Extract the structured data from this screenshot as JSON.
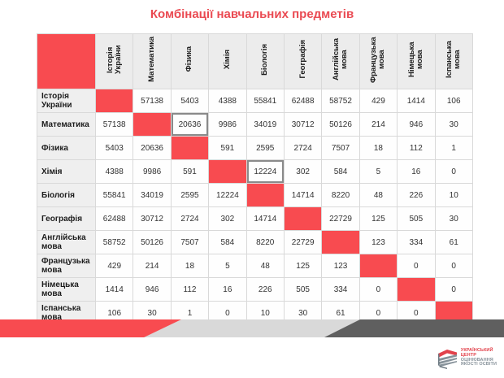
{
  "title": "Комбінації навчальних предметів",
  "chart_data": {
    "type": "table",
    "title": "Комбінації навчальних предметів",
    "subjects": [
      "Історія України",
      "Математика",
      "Фізика",
      "Хімія",
      "Біологія",
      "Географія",
      "Англійська мова",
      "Французька мова",
      "Німецька мова",
      "Іспанська мова"
    ],
    "matrix": [
      [
        null,
        57138,
        5403,
        4388,
        55841,
        62488,
        58752,
        429,
        1414,
        106
      ],
      [
        57138,
        null,
        20636,
        9986,
        34019,
        30712,
        50126,
        214,
        946,
        30
      ],
      [
        5403,
        20636,
        null,
        591,
        2595,
        2724,
        7507,
        18,
        112,
        1
      ],
      [
        4388,
        9986,
        591,
        null,
        12224,
        302,
        584,
        5,
        16,
        0
      ],
      [
        55841,
        34019,
        2595,
        12224,
        null,
        14714,
        8220,
        48,
        226,
        10
      ],
      [
        62488,
        30712,
        2724,
        302,
        14714,
        null,
        22729,
        125,
        505,
        30
      ],
      [
        58752,
        50126,
        7507,
        584,
        8220,
        22729,
        null,
        123,
        334,
        61
      ],
      [
        429,
        214,
        18,
        5,
        48,
        125,
        123,
        null,
        0,
        0
      ],
      [
        1414,
        946,
        112,
        16,
        226,
        505,
        334,
        0,
        null,
        0
      ],
      [
        106,
        30,
        1,
        0,
        10,
        30,
        61,
        0,
        0,
        null
      ]
    ],
    "diagonal_style": "solid-red-empty",
    "highlighted_cells": [
      {
        "row_index": 1,
        "col_index": 2,
        "row": "Математика",
        "col": "Фізика",
        "value": 20636
      },
      {
        "row_index": 3,
        "col_index": 4,
        "row": "Хімія",
        "col": "Біологія",
        "value": 12224
      }
    ]
  },
  "logo": {
    "line1": "УКРАЇНСЬКИЙ",
    "line2": "ЦЕНТР",
    "line3": "ОЦІНЮВАННЯ",
    "line4": "ЯКОСТІ ОСВІТИ"
  },
  "colors": {
    "accent_red": "#f84b50",
    "title_red": "#ea4a52",
    "header_bg": "#ececec",
    "highlight_border": "#8a8a8a",
    "stripe_light": "#d9d9d9",
    "stripe_dark": "#5f5f5f",
    "logo_red": "#e2424b",
    "logo_gray": "#87929a"
  }
}
